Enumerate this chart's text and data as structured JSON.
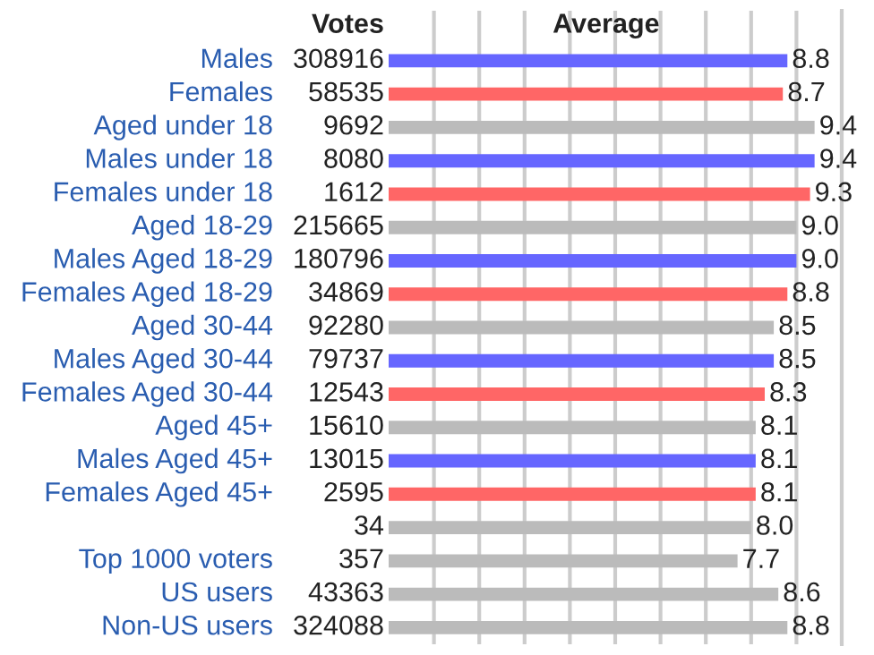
{
  "chart_data": {
    "type": "bar",
    "orientation": "horizontal",
    "categories": [
      "Males",
      "Females",
      "Aged under 18",
      "Males under 18",
      "Females under 18",
      "Aged 18-29",
      "Males Aged 18-29",
      "Females Aged 18-29",
      "Aged 30-44",
      "Males Aged 30-44",
      "Females Aged 30-44",
      "Aged 45+",
      "Males Aged 45+",
      "Females Aged 45+",
      null,
      "Top 1000 voters",
      "US users",
      "Non-US users"
    ],
    "values": [
      8.8,
      8.7,
      9.4,
      9.4,
      9.3,
      9.0,
      9.0,
      8.8,
      8.5,
      8.5,
      8.3,
      8.1,
      8.1,
      8.1,
      8.0,
      7.7,
      8.6,
      8.8
    ],
    "value_labels": [
      "8.8",
      "8.7",
      "9.4",
      "9.4",
      "9.3",
      "9.0",
      "9.0",
      "8.8",
      "8.5",
      "8.5",
      "8.3",
      "8.1",
      "8.1",
      "8.1",
      "8.0",
      "7.7",
      "8.6",
      "8.8"
    ],
    "colors": [
      "#6666ff",
      "#ff6666",
      "#bbbbbb",
      "#6666ff",
      "#ff6666",
      "#bbbbbb",
      "#6666ff",
      "#ff6666",
      "#bbbbbb",
      "#6666ff",
      "#ff6666",
      "#bbbbbb",
      "#6666ff",
      "#ff6666",
      "#bbbbbb",
      "#bbbbbb",
      "#bbbbbb",
      "#bbbbbb"
    ],
    "annotations": [
      "Votes",
      "Average",
      "308916",
      "58535",
      "9692",
      "8080",
      "1612",
      "215665",
      "180796",
      "34869",
      "92280",
      "79737",
      "12543",
      "15610",
      "13015",
      "2595",
      "34",
      "357",
      "43363",
      "324088"
    ],
    "xlim": [
      0,
      10
    ],
    "xticks": [
      {
        "value": 1,
        "label": null
      },
      {
        "value": 2,
        "label": null
      },
      {
        "value": 3,
        "label": null
      },
      {
        "value": 4,
        "label": null
      },
      {
        "value": 5,
        "label": null
      },
      {
        "value": 6,
        "label": null
      },
      {
        "value": 7,
        "label": null
      },
      {
        "value": 8,
        "label": null
      },
      {
        "value": 9,
        "label": null
      },
      {
        "value": 10,
        "label": null
      }
    ],
    "grid": "x",
    "legend": false
  }
}
